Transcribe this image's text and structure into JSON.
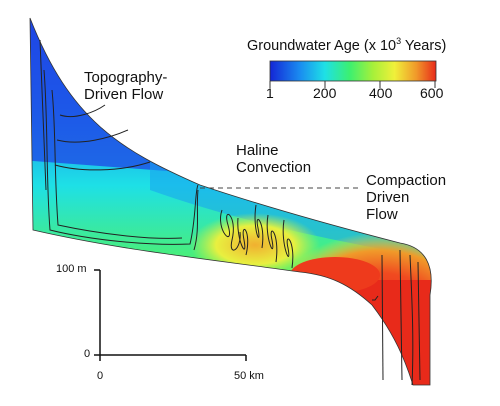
{
  "colorbar": {
    "title_prefix": "Groundwater Age (x 10",
    "title_exponent": "3",
    "title_suffix": " Years)",
    "tick_labels": [
      "1",
      "200",
      "400",
      "600"
    ],
    "gradient_colors": [
      "#1426d6",
      "#1a8cf0",
      "#1ee0e6",
      "#3cf070",
      "#a6f03a",
      "#f0f03a",
      "#f09a2a",
      "#e82a1a"
    ]
  },
  "annotations": {
    "topography_line1": "Topography-",
    "topography_line2": "Driven Flow",
    "haline_line1": "Haline",
    "haline_line2": "Convection",
    "compaction_line1": "Compaction",
    "compaction_line2": "Driven",
    "compaction_line3": "Flow"
  },
  "scale_bar": {
    "vertical_top_label": "100 m",
    "vertical_bottom_label": "0",
    "horizontal_left_label": "0",
    "horizontal_right_label": "50 km"
  }
}
